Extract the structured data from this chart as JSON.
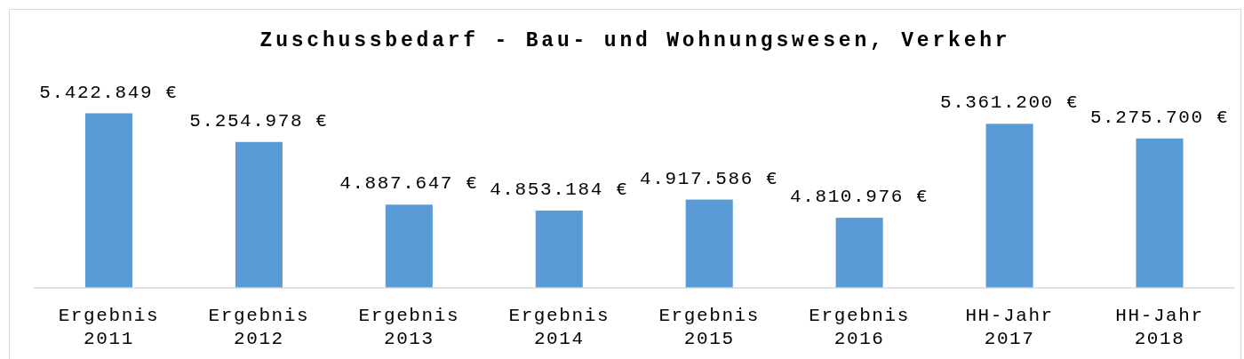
{
  "chart_data": {
    "type": "bar",
    "title": "Zuschussbedarf - Bau- und Wohnungswesen, Verkehr",
    "categories": [
      "Ergebnis 2011",
      "Ergebnis 2012",
      "Ergebnis 2013",
      "Ergebnis 2014",
      "Ergebnis 2015",
      "Ergebnis 2016",
      "HH-Jahr 2017",
      "HH-Jahr 2018"
    ],
    "values": [
      5422849,
      5254978,
      4887647,
      4853184,
      4917586,
      4810976,
      5361200,
      5275700
    ],
    "value_labels": [
      "5.422.849 €",
      "5.254.978 €",
      "4.887.647 €",
      "4.853.184 €",
      "4.917.586 €",
      "4.810.976 €",
      "5.361.200 €",
      "5.275.700 €"
    ],
    "color": "#5b9bd5",
    "ylim": [
      4400000,
      5422849
    ],
    "tick_labels": "x"
  }
}
